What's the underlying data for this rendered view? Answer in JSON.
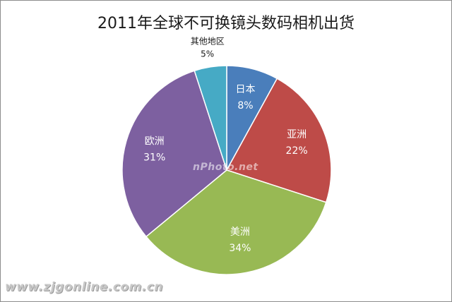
{
  "chart_data": {
    "type": "pie",
    "title": "2011年全球不可换镜头数码相机出货",
    "slices": [
      {
        "name": "日本",
        "value": 8,
        "label": "8%",
        "color": "#4a7ebb"
      },
      {
        "name": "亚洲",
        "value": 22,
        "label": "22%",
        "color": "#be4b48"
      },
      {
        "name": "美洲",
        "value": 34,
        "label": "34%",
        "color": "#98b954"
      },
      {
        "name": "欧洲",
        "value": 31,
        "label": "31%",
        "color": "#7d60a0"
      },
      {
        "name": "其他地区",
        "value": 5,
        "label": "5%",
        "color": "#46aac5"
      }
    ],
    "unit": "%"
  },
  "watermarks": {
    "center": "nPhoto.net",
    "corner": "www.zjgonline.com.cn"
  }
}
